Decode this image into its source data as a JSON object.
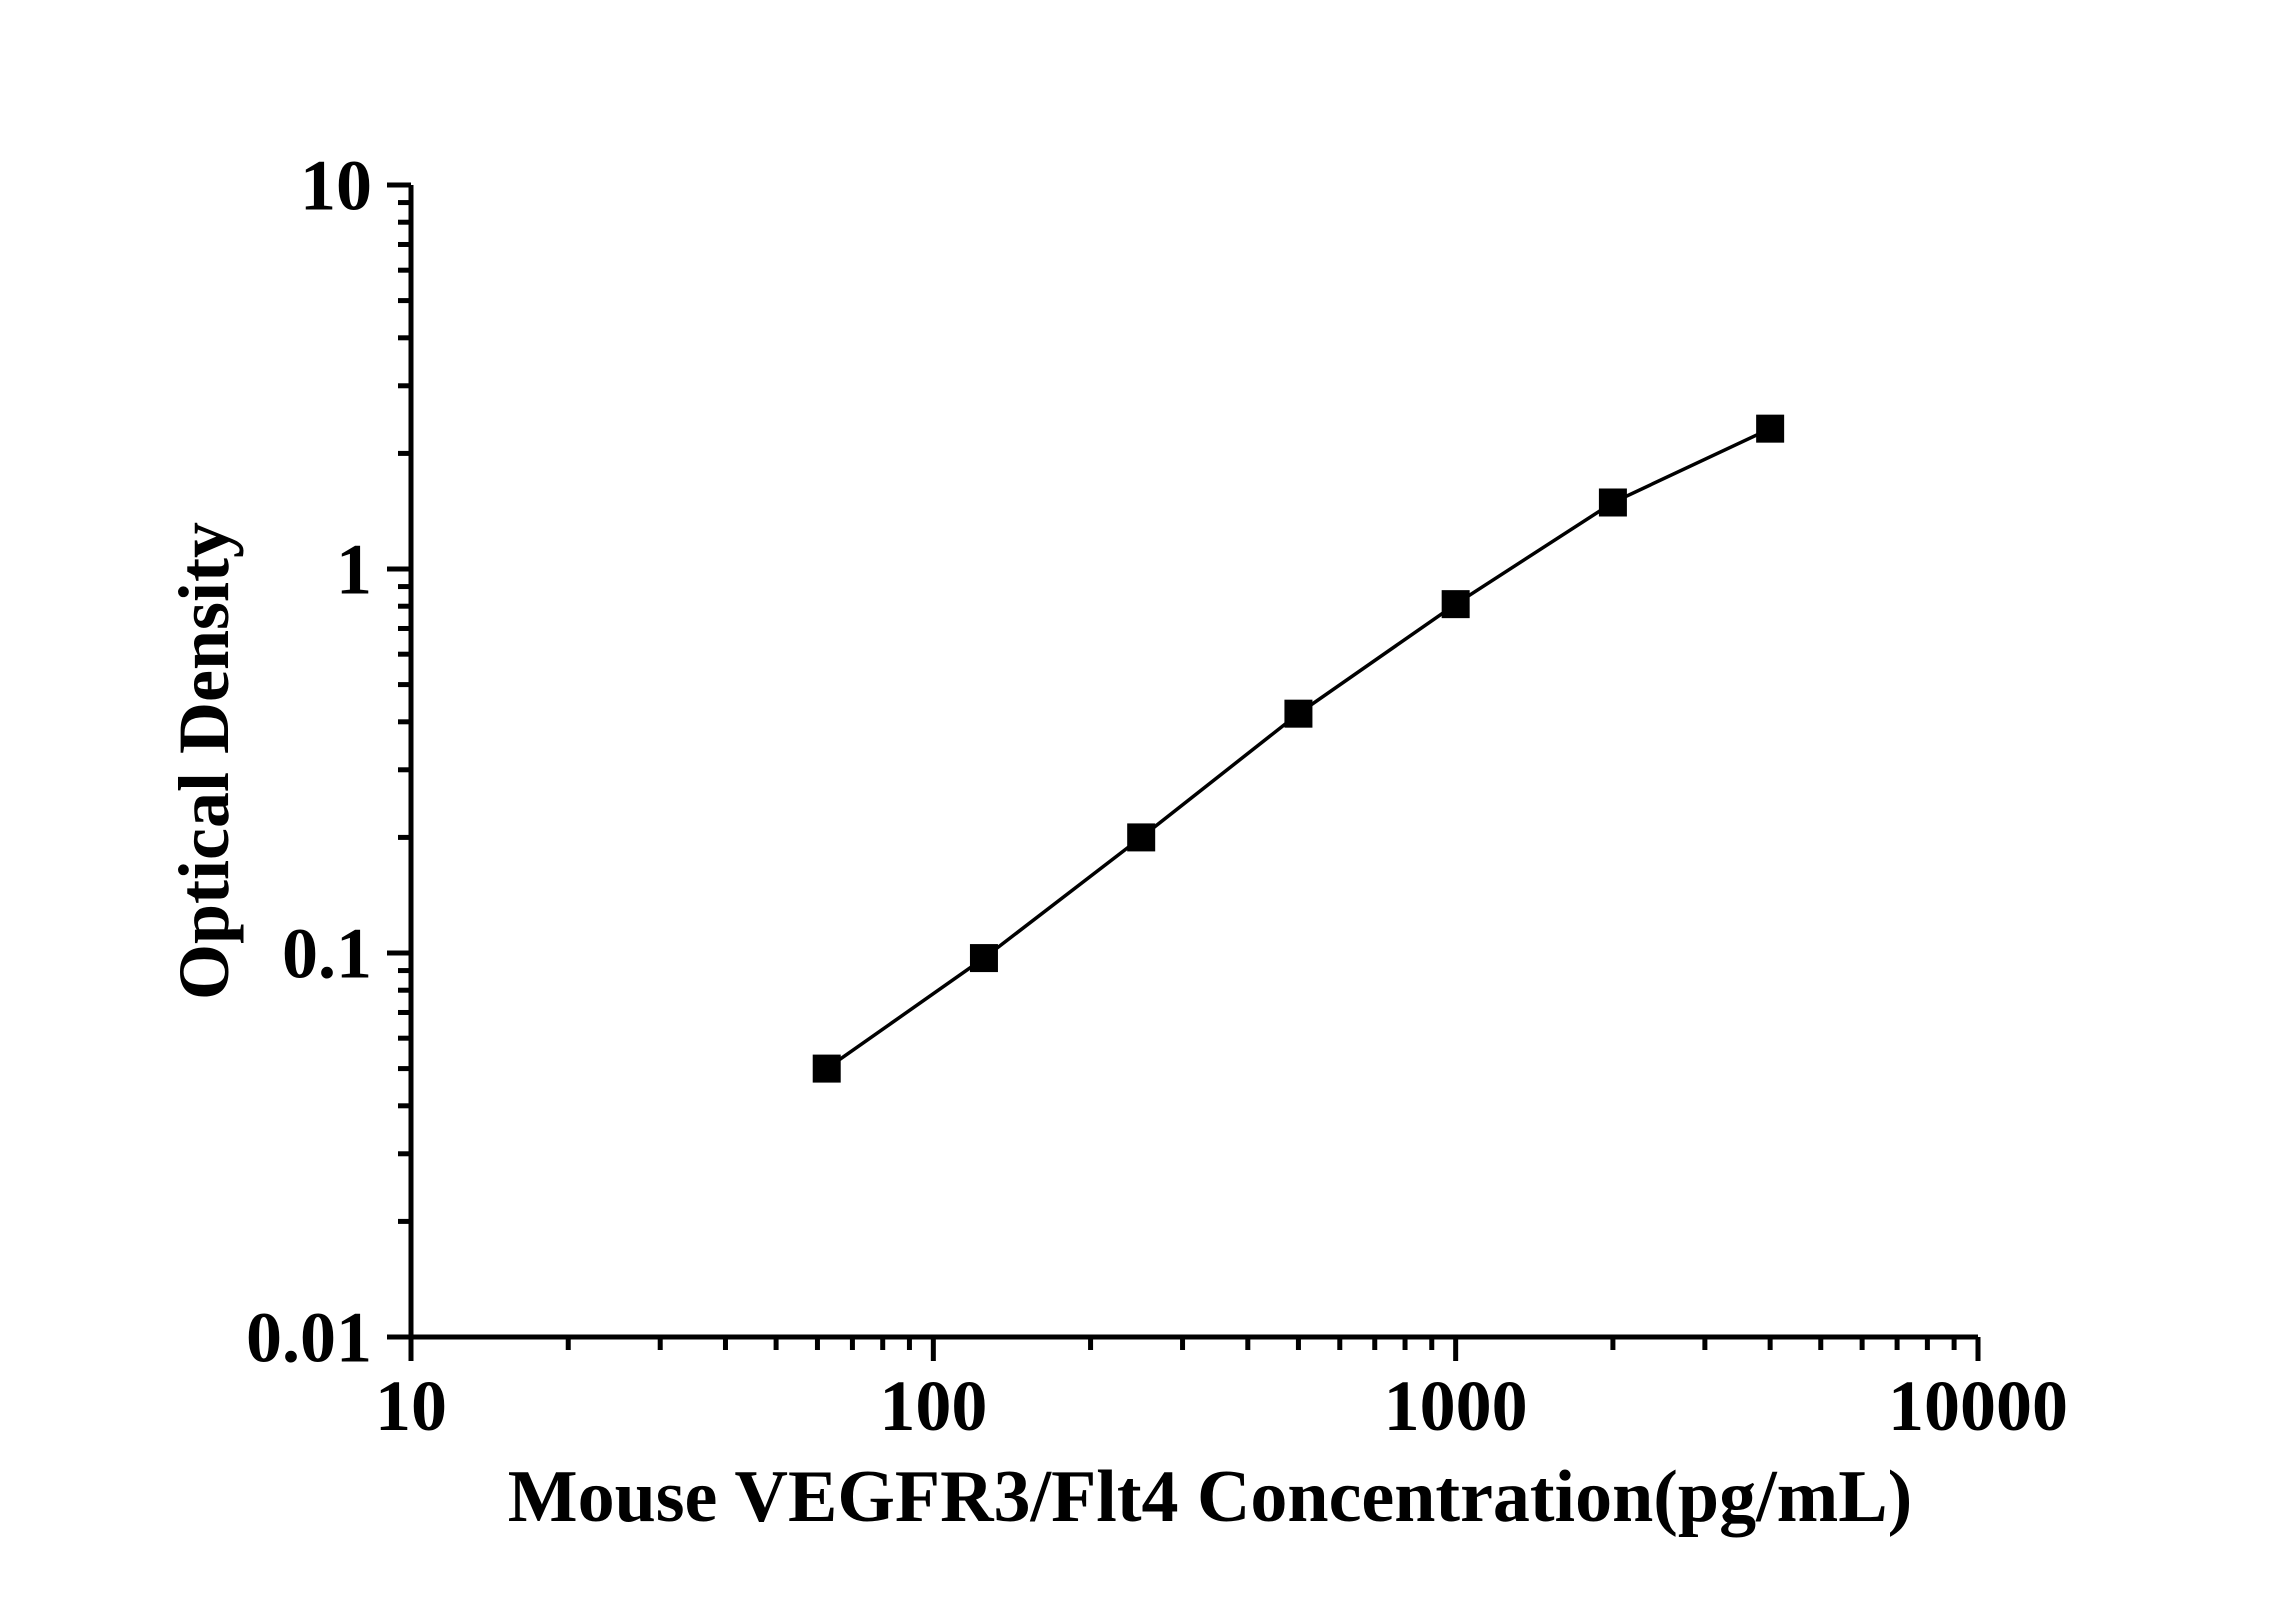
{
  "chart_data": {
    "type": "line",
    "title": "",
    "xlabel": "Mouse VEGFR3/Flt4 Concentration(pg/mL)",
    "ylabel": "Optical Density",
    "x_scale": "log",
    "y_scale": "log",
    "xlim": [
      10,
      10000
    ],
    "ylim": [
      0.01,
      10
    ],
    "x_major_ticks": [
      10,
      100,
      1000,
      10000
    ],
    "x_tick_labels": [
      "10",
      "100",
      "1000",
      "10000"
    ],
    "y_major_ticks": [
      0.01,
      0.1,
      1,
      10
    ],
    "y_tick_labels": [
      "0.01",
      "0.1",
      "1",
      "10"
    ],
    "minor_ticks": true,
    "grid": false,
    "legend": false,
    "series": [
      {
        "name": "standard-curve",
        "marker": "filled-square",
        "line_style": "solid",
        "x": [
          62.5,
          125,
          250,
          500,
          1000,
          2000,
          4000
        ],
        "y": [
          0.05,
          0.097,
          0.2,
          0.42,
          0.81,
          1.49,
          2.32
        ]
      }
    ]
  },
  "colors": {
    "background": "#ffffff",
    "axis": "#000000",
    "line": "#000000",
    "marker": "#000000",
    "text": "#000000"
  }
}
